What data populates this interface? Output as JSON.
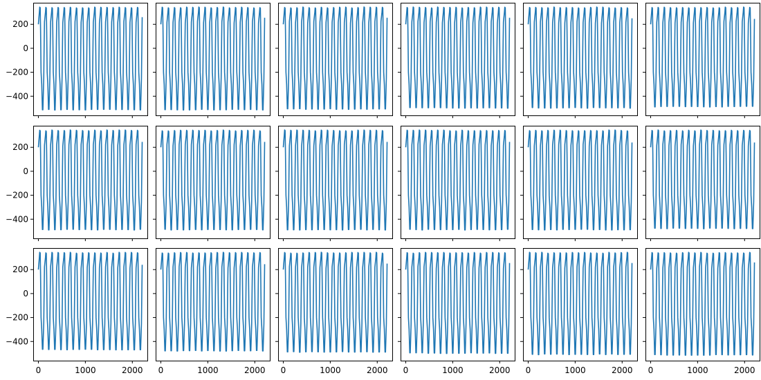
{
  "figure": {
    "layout": "3 rows x 6 columns of line plots",
    "background": "#ffffff",
    "line_color": "#1f77b4",
    "sharex": true,
    "sharey": true
  },
  "chart_data": [
    {
      "type": "line",
      "row": 1,
      "col": 1,
      "cycles": 17,
      "x": [
        0,
        2210
      ],
      "y_start": 200,
      "y_max": 345,
      "y_min": -515,
      "y_end": 260,
      "xlim": [
        -110,
        2320
      ],
      "ylim": [
        -560,
        380
      ],
      "xticks": [],
      "yticks": [
        {
          "v": 200,
          "label": "200"
        },
        {
          "v": 0,
          "label": "0"
        },
        {
          "v": -200,
          "label": "−200"
        },
        {
          "v": -400,
          "label": "−400"
        }
      ]
    },
    {
      "type": "line",
      "row": 1,
      "col": 2,
      "cycles": 17,
      "x": [
        0,
        2210
      ],
      "y_start": 200,
      "y_max": 345,
      "y_min": -515,
      "y_end": 255,
      "xlim": [
        -110,
        2320
      ],
      "ylim": [
        -560,
        380
      ],
      "xticks": [],
      "yticks": []
    },
    {
      "type": "line",
      "row": 1,
      "col": 3,
      "cycles": 17,
      "x": [
        0,
        2210
      ],
      "y_start": 200,
      "y_max": 345,
      "y_min": -510,
      "y_end": 255,
      "xlim": [
        -110,
        2320
      ],
      "ylim": [
        -560,
        380
      ],
      "xticks": [],
      "yticks": []
    },
    {
      "type": "line",
      "row": 1,
      "col": 4,
      "cycles": 17,
      "x": [
        0,
        2210
      ],
      "y_start": 200,
      "y_max": 345,
      "y_min": -500,
      "y_end": 255,
      "xlim": [
        -110,
        2320
      ],
      "ylim": [
        -560,
        380
      ],
      "xticks": [],
      "yticks": []
    },
    {
      "type": "line",
      "row": 1,
      "col": 5,
      "cycles": 17,
      "x": [
        0,
        2210
      ],
      "y_start": 200,
      "y_max": 345,
      "y_min": -500,
      "y_end": 250,
      "xlim": [
        -110,
        2320
      ],
      "ylim": [
        -560,
        380
      ],
      "xticks": [],
      "yticks": []
    },
    {
      "type": "line",
      "row": 1,
      "col": 6,
      "cycles": 17,
      "x": [
        0,
        2210
      ],
      "y_start": 200,
      "y_max": 345,
      "y_min": -490,
      "y_end": 245,
      "xlim": [
        -110,
        2320
      ],
      "ylim": [
        -560,
        380
      ],
      "xticks": [],
      "yticks": []
    },
    {
      "type": "line",
      "row": 2,
      "col": 1,
      "cycles": 17,
      "x": [
        0,
        2210
      ],
      "y_start": 200,
      "y_max": 345,
      "y_min": -490,
      "y_end": 245,
      "xlim": [
        -110,
        2320
      ],
      "ylim": [
        -560,
        380
      ],
      "xticks": [],
      "yticks": [
        {
          "v": 200,
          "label": "200"
        },
        {
          "v": 0,
          "label": "0"
        },
        {
          "v": -200,
          "label": "−200"
        },
        {
          "v": -400,
          "label": "−400"
        }
      ]
    },
    {
      "type": "line",
      "row": 2,
      "col": 2,
      "cycles": 17,
      "x": [
        0,
        2210
      ],
      "y_start": 200,
      "y_max": 345,
      "y_min": -490,
      "y_end": 245,
      "xlim": [
        -110,
        2320
      ],
      "ylim": [
        -560,
        380
      ],
      "xticks": [],
      "yticks": []
    },
    {
      "type": "line",
      "row": 2,
      "col": 3,
      "cycles": 17,
      "x": [
        0,
        2210
      ],
      "y_start": 200,
      "y_max": 345,
      "y_min": -490,
      "y_end": 245,
      "xlim": [
        -110,
        2320
      ],
      "ylim": [
        -560,
        380
      ],
      "xticks": [],
      "yticks": []
    },
    {
      "type": "line",
      "row": 2,
      "col": 4,
      "cycles": 17,
      "x": [
        0,
        2210
      ],
      "y_start": 200,
      "y_max": 345,
      "y_min": -490,
      "y_end": 245,
      "xlim": [
        -110,
        2320
      ],
      "ylim": [
        -560,
        380
      ],
      "xticks": [],
      "yticks": []
    },
    {
      "type": "line",
      "row": 2,
      "col": 5,
      "cycles": 17,
      "x": [
        0,
        2210
      ],
      "y_start": 200,
      "y_max": 345,
      "y_min": -490,
      "y_end": 240,
      "xlim": [
        -110,
        2320
      ],
      "ylim": [
        -560,
        380
      ],
      "xticks": [],
      "yticks": []
    },
    {
      "type": "line",
      "row": 2,
      "col": 6,
      "cycles": 17,
      "x": [
        0,
        2210
      ],
      "y_start": 200,
      "y_max": 345,
      "y_min": -480,
      "y_end": 240,
      "xlim": [
        -110,
        2320
      ],
      "ylim": [
        -560,
        380
      ],
      "xticks": [],
      "yticks": []
    },
    {
      "type": "line",
      "row": 3,
      "col": 1,
      "cycles": 17,
      "x": [
        0,
        2210
      ],
      "y_start": 200,
      "y_max": 345,
      "y_min": -470,
      "y_end": 240,
      "xlim": [
        -110,
        2320
      ],
      "ylim": [
        -560,
        380
      ],
      "xticks": [
        {
          "v": 0,
          "label": "0"
        },
        {
          "v": 1000,
          "label": "1000"
        },
        {
          "v": 2000,
          "label": "2000"
        }
      ],
      "yticks": [
        {
          "v": 200,
          "label": "200"
        },
        {
          "v": 0,
          "label": "0"
        },
        {
          "v": -200,
          "label": "−200"
        },
        {
          "v": -400,
          "label": "−400"
        }
      ]
    },
    {
      "type": "line",
      "row": 3,
      "col": 2,
      "cycles": 17,
      "x": [
        0,
        2210
      ],
      "y_start": 200,
      "y_max": 345,
      "y_min": -480,
      "y_end": 245,
      "xlim": [
        -110,
        2320
      ],
      "ylim": [
        -560,
        380
      ],
      "xticks": [
        {
          "v": 0,
          "label": "0"
        },
        {
          "v": 1000,
          "label": "1000"
        },
        {
          "v": 2000,
          "label": "2000"
        }
      ],
      "yticks": []
    },
    {
      "type": "line",
      "row": 3,
      "col": 3,
      "cycles": 17,
      "x": [
        0,
        2210
      ],
      "y_start": 200,
      "y_max": 345,
      "y_min": -490,
      "y_end": 250,
      "xlim": [
        -110,
        2320
      ],
      "ylim": [
        -560,
        380
      ],
      "xticks": [
        {
          "v": 0,
          "label": "0"
        },
        {
          "v": 1000,
          "label": "1000"
        },
        {
          "v": 2000,
          "label": "2000"
        }
      ],
      "yticks": []
    },
    {
      "type": "line",
      "row": 3,
      "col": 4,
      "cycles": 17,
      "x": [
        0,
        2210
      ],
      "y_start": 200,
      "y_max": 345,
      "y_min": -500,
      "y_end": 255,
      "xlim": [
        -110,
        2320
      ],
      "ylim": [
        -560,
        380
      ],
      "xticks": [
        {
          "v": 0,
          "label": "0"
        },
        {
          "v": 1000,
          "label": "1000"
        },
        {
          "v": 2000,
          "label": "2000"
        }
      ],
      "yticks": []
    },
    {
      "type": "line",
      "row": 3,
      "col": 5,
      "cycles": 17,
      "x": [
        0,
        2210
      ],
      "y_start": 200,
      "y_max": 345,
      "y_min": -510,
      "y_end": 255,
      "xlim": [
        -110,
        2320
      ],
      "ylim": [
        -560,
        380
      ],
      "xticks": [
        {
          "v": 0,
          "label": "0"
        },
        {
          "v": 1000,
          "label": "1000"
        },
        {
          "v": 2000,
          "label": "2000"
        }
      ],
      "yticks": []
    },
    {
      "type": "line",
      "row": 3,
      "col": 6,
      "cycles": 17,
      "x": [
        0,
        2210
      ],
      "y_start": 200,
      "y_max": 345,
      "y_min": -515,
      "y_end": 260,
      "xlim": [
        -110,
        2320
      ],
      "ylim": [
        -560,
        380
      ],
      "xticks": [
        {
          "v": 0,
          "label": "0"
        },
        {
          "v": 1000,
          "label": "1000"
        },
        {
          "v": 2000,
          "label": "2000"
        }
      ],
      "yticks": []
    }
  ]
}
